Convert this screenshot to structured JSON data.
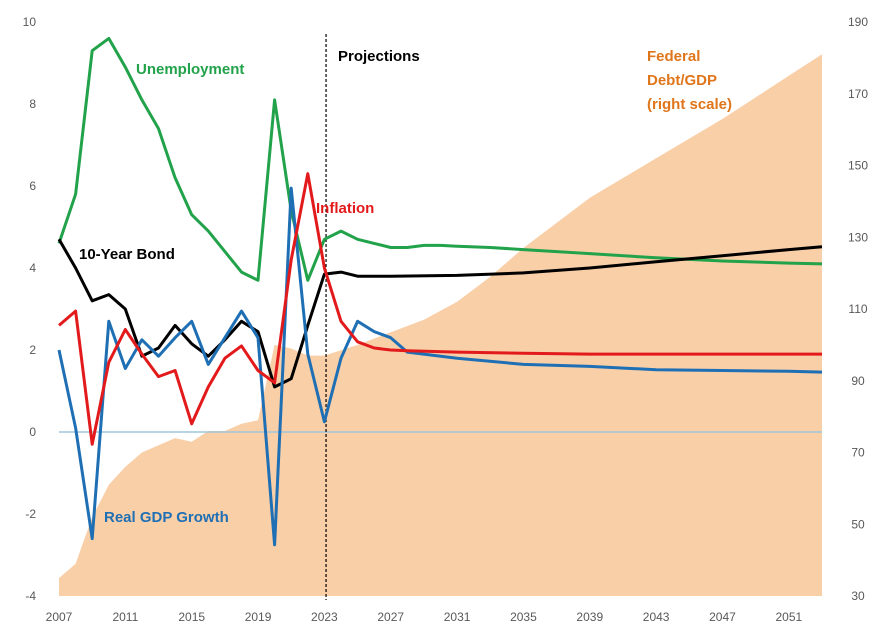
{
  "chart_data": {
    "type": "line",
    "title": "",
    "annotations": {
      "projections": "Projections",
      "debt_line1": "Federal",
      "debt_line2": "Debt/GDP",
      "debt_line3": "(right scale)"
    },
    "projection_start_year": 2023.1,
    "x_ticks": [
      "2007",
      "2011",
      "2015",
      "2019",
      "2023",
      "2027",
      "2031",
      "2035",
      "2039",
      "2043",
      "2047",
      "2051"
    ],
    "xlim": [
      2007,
      2053
    ],
    "ylim_left": [
      -4,
      10
    ],
    "ylim_right": [
      30,
      190
    ],
    "left_ticks": [
      "-4",
      "-2",
      "0",
      "2",
      "4",
      "6",
      "8",
      "10"
    ],
    "right_ticks": [
      "30",
      "50",
      "70",
      "90",
      "110",
      "130",
      "150",
      "170",
      "190"
    ],
    "colors": {
      "unemployment": "#22a24a",
      "inflation": "#e31a1c",
      "bond": "#000000",
      "gdp": "#1f6fb4",
      "debt": "#f9cfa8",
      "debt_label": "#e0761b",
      "zero_line": "#9fc5da",
      "axis_text": "#595959"
    },
    "series": [
      {
        "name": "Unemployment",
        "axis": "left",
        "x": [
          2007,
          2008,
          2009,
          2010,
          2011,
          2012,
          2013,
          2014,
          2015,
          2016,
          2017,
          2018,
          2019,
          2020,
          2021,
          2022,
          2023,
          2024,
          2025,
          2026,
          2027,
          2028,
          2029,
          2030,
          2031,
          2033,
          2035,
          2039,
          2043,
          2047,
          2051,
          2053
        ],
        "y": [
          4.6,
          5.8,
          9.3,
          9.6,
          8.9,
          8.1,
          7.4,
          6.2,
          5.3,
          4.9,
          4.4,
          3.9,
          3.7,
          8.1,
          5.4,
          3.7,
          4.7,
          4.9,
          4.7,
          4.6,
          4.5,
          4.5,
          4.55,
          4.55,
          4.53,
          4.5,
          4.45,
          4.35,
          4.25,
          4.17,
          4.12,
          4.1
        ]
      },
      {
        "name": "Inflation",
        "axis": "left",
        "x": [
          2007,
          2008,
          2009,
          2010,
          2011,
          2012,
          2013,
          2014,
          2015,
          2016,
          2017,
          2018,
          2019,
          2020,
          2021,
          2022,
          2023,
          2024,
          2025,
          2026,
          2027,
          2028,
          2031,
          2035,
          2039,
          2043,
          2047,
          2051,
          2053
        ],
        "y": [
          2.6,
          2.95,
          -0.3,
          1.7,
          2.5,
          1.9,
          1.35,
          1.5,
          0.2,
          1.1,
          1.8,
          2.1,
          1.5,
          1.2,
          4.2,
          6.3,
          4.0,
          2.7,
          2.2,
          2.05,
          2.0,
          1.98,
          1.95,
          1.92,
          1.9,
          1.9,
          1.9,
          1.9,
          1.9
        ]
      },
      {
        "name": "10-Year Bond",
        "axis": "left",
        "x": [
          2007,
          2008,
          2009,
          2010,
          2011,
          2012,
          2013,
          2014,
          2015,
          2016,
          2017,
          2018,
          2019,
          2020,
          2021,
          2022,
          2023,
          2024,
          2025,
          2027,
          2031,
          2035,
          2039,
          2043,
          2047,
          2051,
          2053
        ],
        "y": [
          4.7,
          4.0,
          3.2,
          3.35,
          3.0,
          1.85,
          2.05,
          2.6,
          2.15,
          1.85,
          2.25,
          2.7,
          2.45,
          1.1,
          1.3,
          2.6,
          3.85,
          3.9,
          3.8,
          3.8,
          3.82,
          3.88,
          4.0,
          4.15,
          4.3,
          4.45,
          4.52
        ]
      },
      {
        "name": "Real GDP Growth",
        "axis": "left",
        "x": [
          2007,
          2008,
          2009,
          2010,
          2011,
          2012,
          2013,
          2014,
          2015,
          2016,
          2017,
          2018,
          2019,
          2020,
          2021,
          2022,
          2023,
          2024,
          2025,
          2026,
          2027,
          2028,
          2031,
          2035,
          2039,
          2043,
          2047,
          2051,
          2053
        ],
        "y": [
          2.0,
          0.1,
          -2.6,
          2.7,
          1.55,
          2.25,
          1.85,
          2.3,
          2.7,
          1.65,
          2.3,
          2.95,
          2.3,
          -2.75,
          5.95,
          1.9,
          0.25,
          1.8,
          2.7,
          2.45,
          2.3,
          1.95,
          1.8,
          1.65,
          1.6,
          1.52,
          1.5,
          1.48,
          1.46
        ]
      },
      {
        "name": "Federal Debt/GDP",
        "axis": "right",
        "type": "area",
        "x": [
          2007,
          2008,
          2009,
          2010,
          2011,
          2012,
          2013,
          2014,
          2015,
          2016,
          2017,
          2018,
          2019,
          2020,
          2021,
          2022,
          2023,
          2025,
          2027,
          2029,
          2031,
          2033,
          2035,
          2039,
          2043,
          2047,
          2051,
          2053
        ],
        "y": [
          35,
          39,
          52,
          61,
          66,
          70,
          72,
          74,
          73,
          76,
          76,
          78,
          79,
          100,
          99,
          97,
          97,
          100,
          103.5,
          107,
          112,
          119,
          127,
          141,
          152,
          163,
          175,
          181
        ]
      }
    ],
    "labels": {
      "unemployment": "Unemployment",
      "inflation": "Inflation",
      "bond": "10-Year Bond",
      "gdp": "Real GDP Growth"
    }
  }
}
